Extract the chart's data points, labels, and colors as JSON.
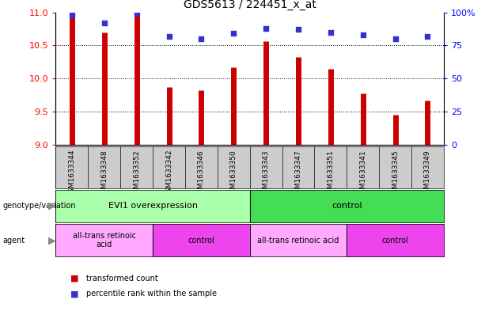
{
  "title": "GDS5613 / 224451_x_at",
  "samples": [
    "GSM1633344",
    "GSM1633348",
    "GSM1633352",
    "GSM1633342",
    "GSM1633346",
    "GSM1633350",
    "GSM1633343",
    "GSM1633347",
    "GSM1633351",
    "GSM1633341",
    "GSM1633345",
    "GSM1633349"
  ],
  "transformed_count": [
    10.95,
    10.7,
    10.95,
    9.87,
    9.82,
    10.17,
    10.57,
    10.33,
    10.15,
    9.77,
    9.45,
    9.67
  ],
  "percentile_rank": [
    98,
    92,
    99,
    82,
    80,
    84,
    88,
    87,
    85,
    83,
    80,
    82
  ],
  "ylim_left": [
    9,
    11
  ],
  "ylim_right": [
    0,
    100
  ],
  "yticks_left": [
    9,
    9.5,
    10,
    10.5,
    11
  ],
  "yticks_right": [
    0,
    25,
    50,
    75,
    100
  ],
  "bar_color": "#cc0000",
  "dot_color": "#3333cc",
  "sample_bg_color": "#cccccc",
  "geno_groups": [
    {
      "label": "EVI1 overexpression",
      "start": 0,
      "end": 6,
      "color": "#aaffaa"
    },
    {
      "label": "control",
      "start": 6,
      "end": 12,
      "color": "#44dd55"
    }
  ],
  "agent_groups": [
    {
      "label": "all-trans retinoic\nacid",
      "start": 0,
      "end": 3,
      "color": "#ffaaff"
    },
    {
      "label": "control",
      "start": 3,
      "end": 6,
      "color": "#ee44ee"
    },
    {
      "label": "all-trans retinoic acid",
      "start": 6,
      "end": 9,
      "color": "#ffaaff"
    },
    {
      "label": "control",
      "start": 9,
      "end": 12,
      "color": "#ee44ee"
    }
  ],
  "legend_items": [
    {
      "label": "transformed count",
      "color": "#cc0000"
    },
    {
      "label": "percentile rank within the sample",
      "color": "#3333cc"
    }
  ]
}
